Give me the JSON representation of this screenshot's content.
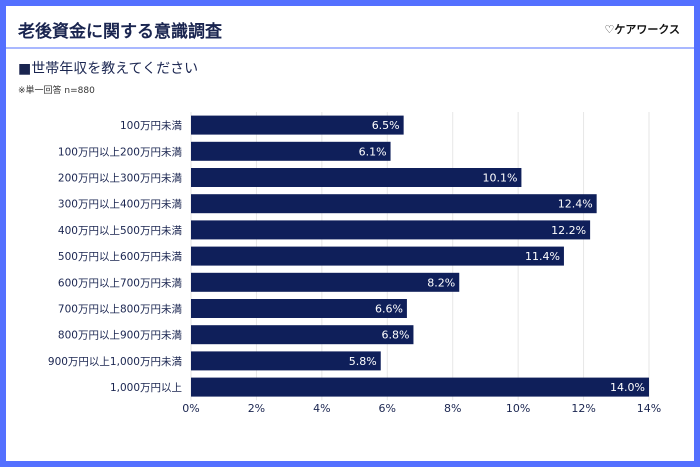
{
  "header": {
    "title": "老後資金に関する意識調査",
    "logo": "♡ケアワークス"
  },
  "subtitle": "■世帯年収を教えてください",
  "note": "※単一回答 n=880",
  "colors": {
    "frame": "#5470ff",
    "bar": "#0f1f5a",
    "grid": "#e6e6e6"
  },
  "chart_data": {
    "type": "bar",
    "orientation": "horizontal",
    "categories": [
      "100万円未満",
      "100万円以上200万円未満",
      "200万円以上300万円未満",
      "300万円以上400万円未満",
      "400万円以上500万円未満",
      "500万円以上600万円未満",
      "600万円以上700万円未満",
      "700万円以上800万円未満",
      "800万円以上900万円未満",
      "900万円以上1,000万円未満",
      "1,000万円以上"
    ],
    "values": [
      6.5,
      6.1,
      10.1,
      12.4,
      12.2,
      11.4,
      8.2,
      6.6,
      6.8,
      5.8,
      14.0
    ],
    "data_labels": [
      "6.5%",
      "6.1%",
      "10.1%",
      "12.4%",
      "12.2%",
      "11.4%",
      "8.2%",
      "6.6%",
      "6.8%",
      "5.8%",
      "14.0%"
    ],
    "xlim": [
      0,
      14
    ],
    "xticks": [
      "0%",
      "2%",
      "4%",
      "6%",
      "8%",
      "10%",
      "12%",
      "14%"
    ],
    "grid": true
  }
}
